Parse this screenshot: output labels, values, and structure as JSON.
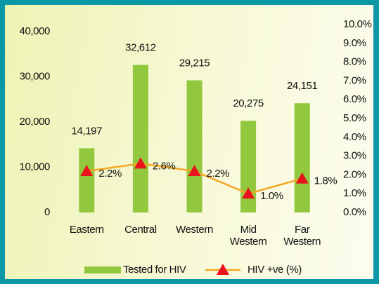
{
  "chart_data": {
    "type": "bar",
    "categories": [
      "Eastern",
      "Central",
      "Western",
      "Mid Western",
      "Far Western"
    ],
    "series": [
      {
        "name": "Tested for HIV",
        "type": "bar",
        "color": "#92c83e",
        "values": [
          14197,
          32612,
          29215,
          20275,
          24151
        ],
        "value_labels": [
          "14,197",
          "32,612",
          "29,215",
          "20,275",
          "24,151"
        ]
      },
      {
        "name": "HIV +ve (%)",
        "type": "line",
        "axis": "y2",
        "color": "#f5a623",
        "marker_color": "#e8131b",
        "values": [
          2.2,
          2.6,
          2.2,
          1.0,
          1.8
        ],
        "value_labels": [
          "2.2%",
          "2.6%",
          "2.2%",
          "1.0%",
          "1.8%"
        ]
      }
    ],
    "ylim": [
      0,
      40000
    ],
    "yticks": [
      0,
      {
        "value": 10000,
        "label": "10,000"
      },
      {
        "value": 20000,
        "label": "20,000"
      },
      {
        "value": 30000,
        "label": "30,000"
      },
      {
        "value": 40000,
        "label": "40,000"
      }
    ],
    "y2lim": [
      0,
      10
    ],
    "y2ticks": [
      {
        "value": 0,
        "label": "0.0%"
      },
      {
        "value": 1,
        "label": "1.0%"
      },
      {
        "value": 2,
        "label": "2.0%"
      },
      {
        "value": 3,
        "label": "3.0%"
      },
      {
        "value": 4,
        "label": "4.0%"
      },
      {
        "value": 5,
        "label": "5.0%"
      },
      {
        "value": 6,
        "label": "6.0%"
      },
      {
        "value": 7,
        "label": "7.0%"
      },
      {
        "value": 8,
        "label": "8.0%"
      },
      {
        "value": 9,
        "label": "9.0%"
      },
      {
        "value": 10,
        "label": "10.0%"
      }
    ],
    "grid": false,
    "legend": "bottom"
  }
}
